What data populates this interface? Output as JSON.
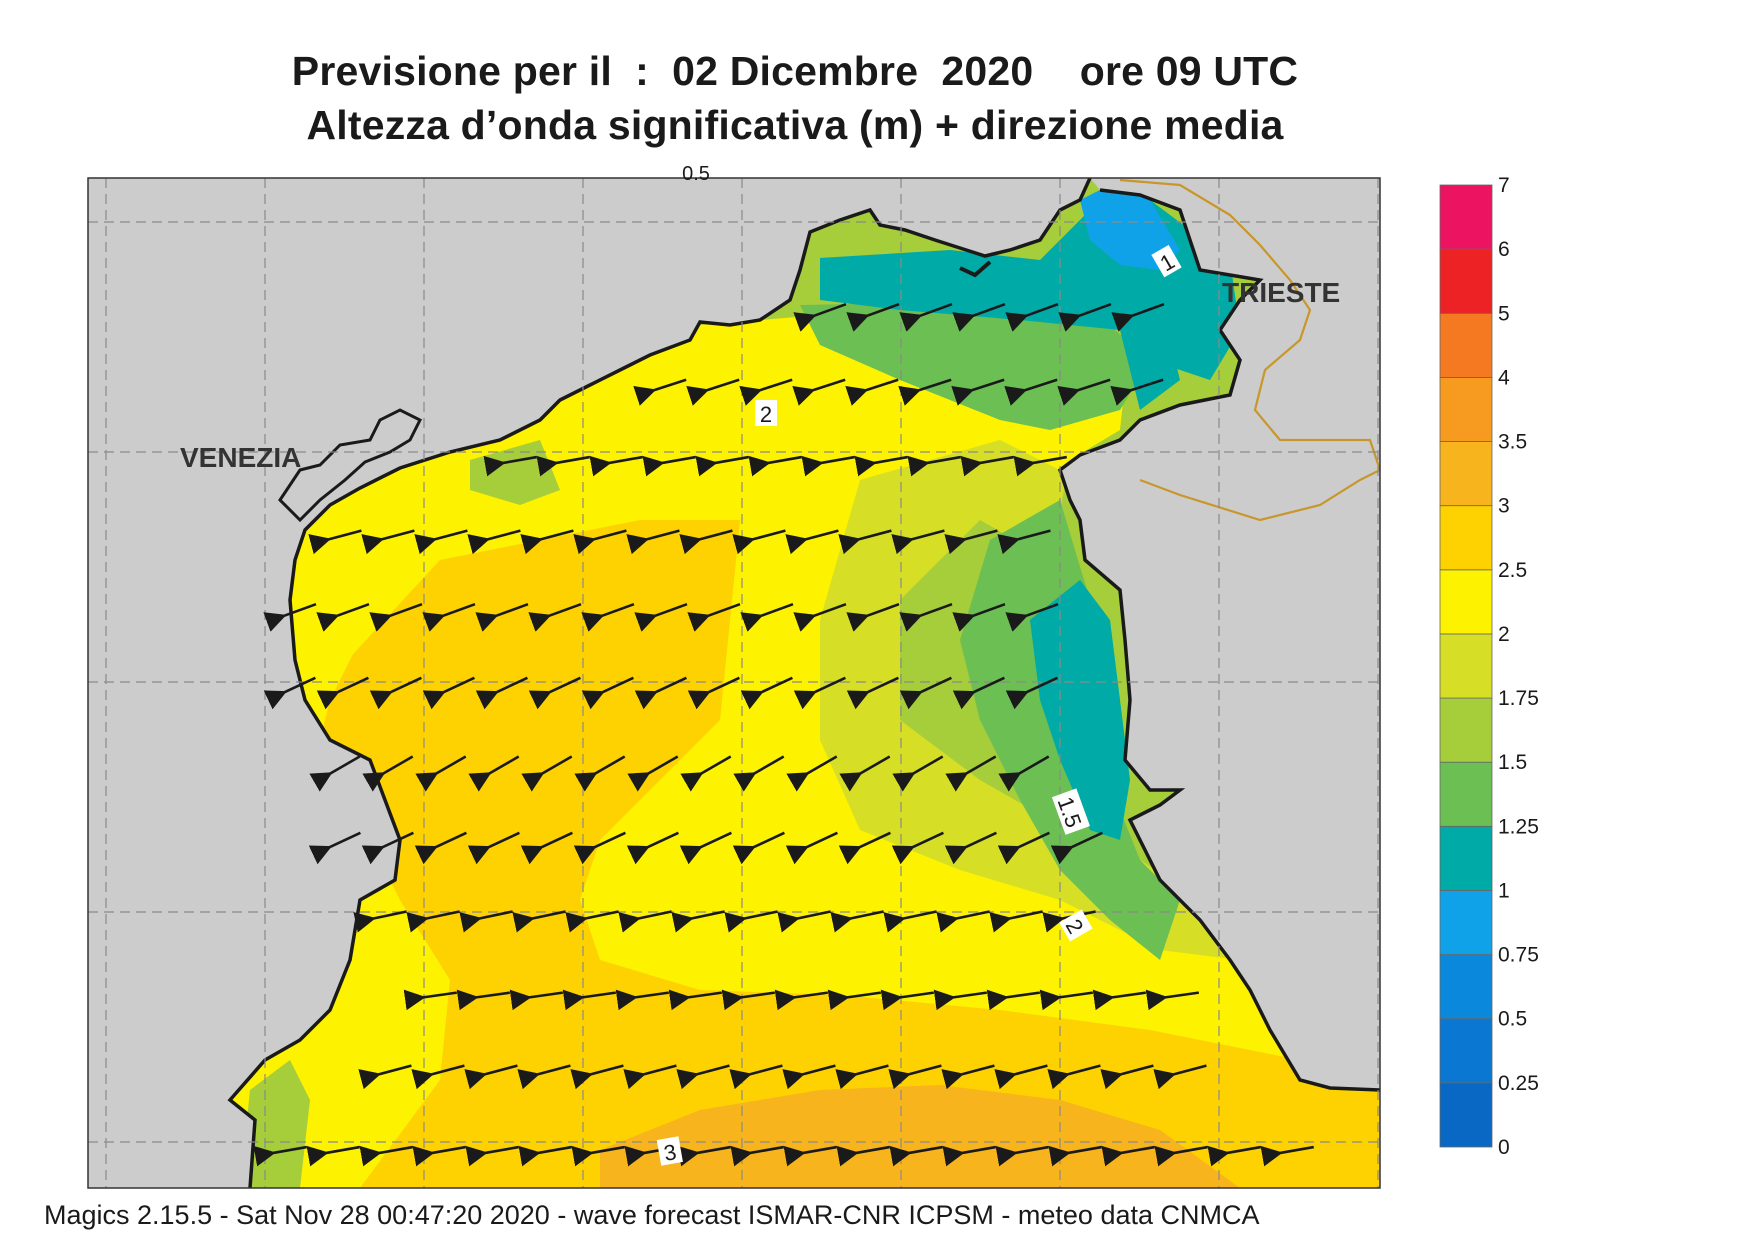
{
  "title_line1": "Previsione per il  :  02 Dicembre  2020    ore 09 UTC",
  "title_line2": "Altezza d’onda significativa (m) + direzione media",
  "footer": "Magics 2.15.5 - Sat Nov 28 00:47:20 2020 - wave forecast  ISMAR-CNR  ICPSM - meteo data   CNMCA",
  "places": [
    {
      "name": "VENEZIA"
    },
    {
      "name": "TRIESTE"
    }
  ],
  "contour_labels": [
    "1",
    "2",
    "1.5",
    "2",
    "3",
    "0.5"
  ],
  "colors": {
    "land": "#cccccc",
    "coast": "#1a1a1a",
    "border": "#c8962a",
    "arrow": "#1a1a1a"
  },
  "legend": {
    "unit": "m",
    "bands": [
      {
        "from": "0",
        "to": "0.25",
        "color": "#0868c4"
      },
      {
        "from": "0.25",
        "to": "0.5",
        "color": "#0a78d2"
      },
      {
        "from": "0.5",
        "to": "0.75",
        "color": "#0a88dc"
      },
      {
        "from": "0.75",
        "to": "1",
        "color": "#10a2e8"
      },
      {
        "from": "1",
        "to": "1.25",
        "color": "#00aaa6"
      },
      {
        "from": "1.25",
        "to": "1.5",
        "color": "#6cbf52"
      },
      {
        "from": "1.5",
        "to": "1.75",
        "color": "#a6cd3a"
      },
      {
        "from": "1.75",
        "to": "2",
        "color": "#d6df26"
      },
      {
        "from": "2",
        "to": "2.5",
        "color": "#fdf200"
      },
      {
        "from": "2.5",
        "to": "3",
        "color": "#fdd200"
      },
      {
        "from": "3",
        "to": "3.5",
        "color": "#f8b41c"
      },
      {
        "from": "3.5",
        "to": "4",
        "color": "#f69a20"
      },
      {
        "from": "4",
        "to": "5",
        "color": "#f47920"
      },
      {
        "from": "5",
        "to": "6",
        "color": "#ec2224"
      },
      {
        "from": "6",
        "to": "7",
        "color": "#ec1460"
      }
    ],
    "tick_labels": [
      "0",
      "0.25",
      "0.5",
      "0.75",
      "1",
      "1.25",
      "1.5",
      "1.75",
      "2",
      "2.5",
      "3",
      "3.5",
      "4",
      "5",
      "6",
      "7"
    ]
  }
}
